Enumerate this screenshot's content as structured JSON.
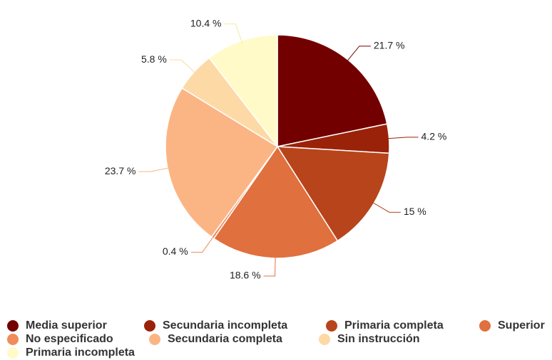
{
  "chart_data": {
    "type": "pie",
    "categories": [
      "Media superior",
      "Secundaria incompleta",
      "Primaria completa",
      "Superior",
      "No especificado",
      "Secundaria completa",
      "Sin instrucción",
      "Primaria incompleta"
    ],
    "values": [
      21.7,
      4.2,
      15,
      18.6,
      0.4,
      23.7,
      5.8,
      10.4
    ],
    "value_labels": [
      "21.7 %",
      "4.2 %",
      "15 %",
      "18.6 %",
      "0.4 %",
      "23.7 %",
      "5.8 %",
      "10.4 %"
    ],
    "colors": [
      "#730000",
      "#9a2209",
      "#b8441c",
      "#e0703e",
      "#f08c5c",
      "#fbb584",
      "#fdd9a6",
      "#fffac8"
    ],
    "legend": "bottom"
  }
}
